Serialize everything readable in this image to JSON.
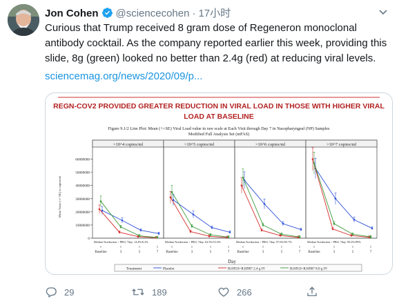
{
  "tweet": {
    "author_name": "Jon Cohen",
    "handle": "@sciencecohen",
    "separator": "·",
    "time": "17小时",
    "text": "Curious that Trump received 8 gram dose of Regeneron monoclonal antibody cocktail. As the company reported earlier this week, providing this slide, 8g (green) looked no better than 2.4g (red) at reducing viral levels.",
    "link": "sciencemag.org/news/2020/09/p..."
  },
  "slide": {
    "title_line1": "REGN-COV2 PROVIDED GREATER REDUCTION IN VIRAL LOAD IN THOSE WITH HIGHER VIRAL",
    "title_line2": "LOAD AT BASELINE",
    "figure_title": "Figure 9.1/2 Line Plot: Mean (+/-SE) Viral Load value in raw scale at Each Visit through Day 7 in Nasopharyngeal (NP) Samples",
    "figure_subtitle": "Modified Full Analysis Set (mFAS)",
    "y_axis_label": "Mean Value (+/- SE) in copies/ml",
    "x_axis_label": "Day",
    "y_ticks": [
      "60000000",
      "50000000",
      "40000000",
      "30000000",
      "20000000",
      "10000000",
      "0"
    ],
    "x_ticks": [
      "Baseline",
      "3",
      "5",
      "7"
    ],
    "legend": {
      "title": "Treatment",
      "items": [
        "Placebo",
        "R10933+R10987 2.4 g IV",
        "R10933+R10987 8.0 g IV"
      ]
    },
    "colors": {
      "placebo": "#2b4fd8",
      "dose_2_4g": "#d42a2a",
      "dose_8g": "#3a9a3a",
      "title_red": "#b22222"
    },
    "panels": [
      {
        "label": ">10^4 copies/ml",
        "note": "Median %reduction > PBO, 7day: 14.4%/6.2%",
        "placebo": [
          21000000,
          13500000,
          6000000,
          3500000
        ],
        "dose_2_4g": [
          22000000,
          4500000,
          1200000,
          300000
        ],
        "dose_8g": [
          28000000,
          8500000,
          1800000,
          500000
        ]
      },
      {
        "label": ">10^5 copies/ml",
        "note": "Median %reduction > PBO, 7day: 62.5%/51.6%",
        "placebo": [
          29000000,
          18000000,
          8000000,
          4500000
        ],
        "dose_2_4g": [
          31000000,
          5000000,
          1500000,
          500000
        ],
        "dose_8g": [
          35000000,
          9000000,
          2500000,
          800000
        ]
      },
      {
        "label": ">10^6 copies/ml",
        "note": "Median %reduction > PBO, 7day: 97.6%/95.7%",
        "placebo": [
          44000000,
          26000000,
          11000000,
          6500000
        ],
        "dose_2_4g": [
          40000000,
          6000000,
          2000000,
          600000
        ],
        "dose_8g": [
          46000000,
          10000000,
          3000000,
          900000
        ]
      },
      {
        "label": ">10^7 copies/ml",
        "note": "Median %reduction > PBO, 7day: 99.2%/99%",
        "placebo": [
          53000000,
          30000000,
          14000000,
          7500000
        ],
        "dose_2_4g": [
          60000000,
          7000000,
          2000000,
          700000
        ],
        "dose_8g": [
          57000000,
          11000000,
          3000000,
          1000000
        ]
      }
    ]
  },
  "actions": {
    "replies": "29",
    "retweets": "189",
    "likes": "266"
  }
}
